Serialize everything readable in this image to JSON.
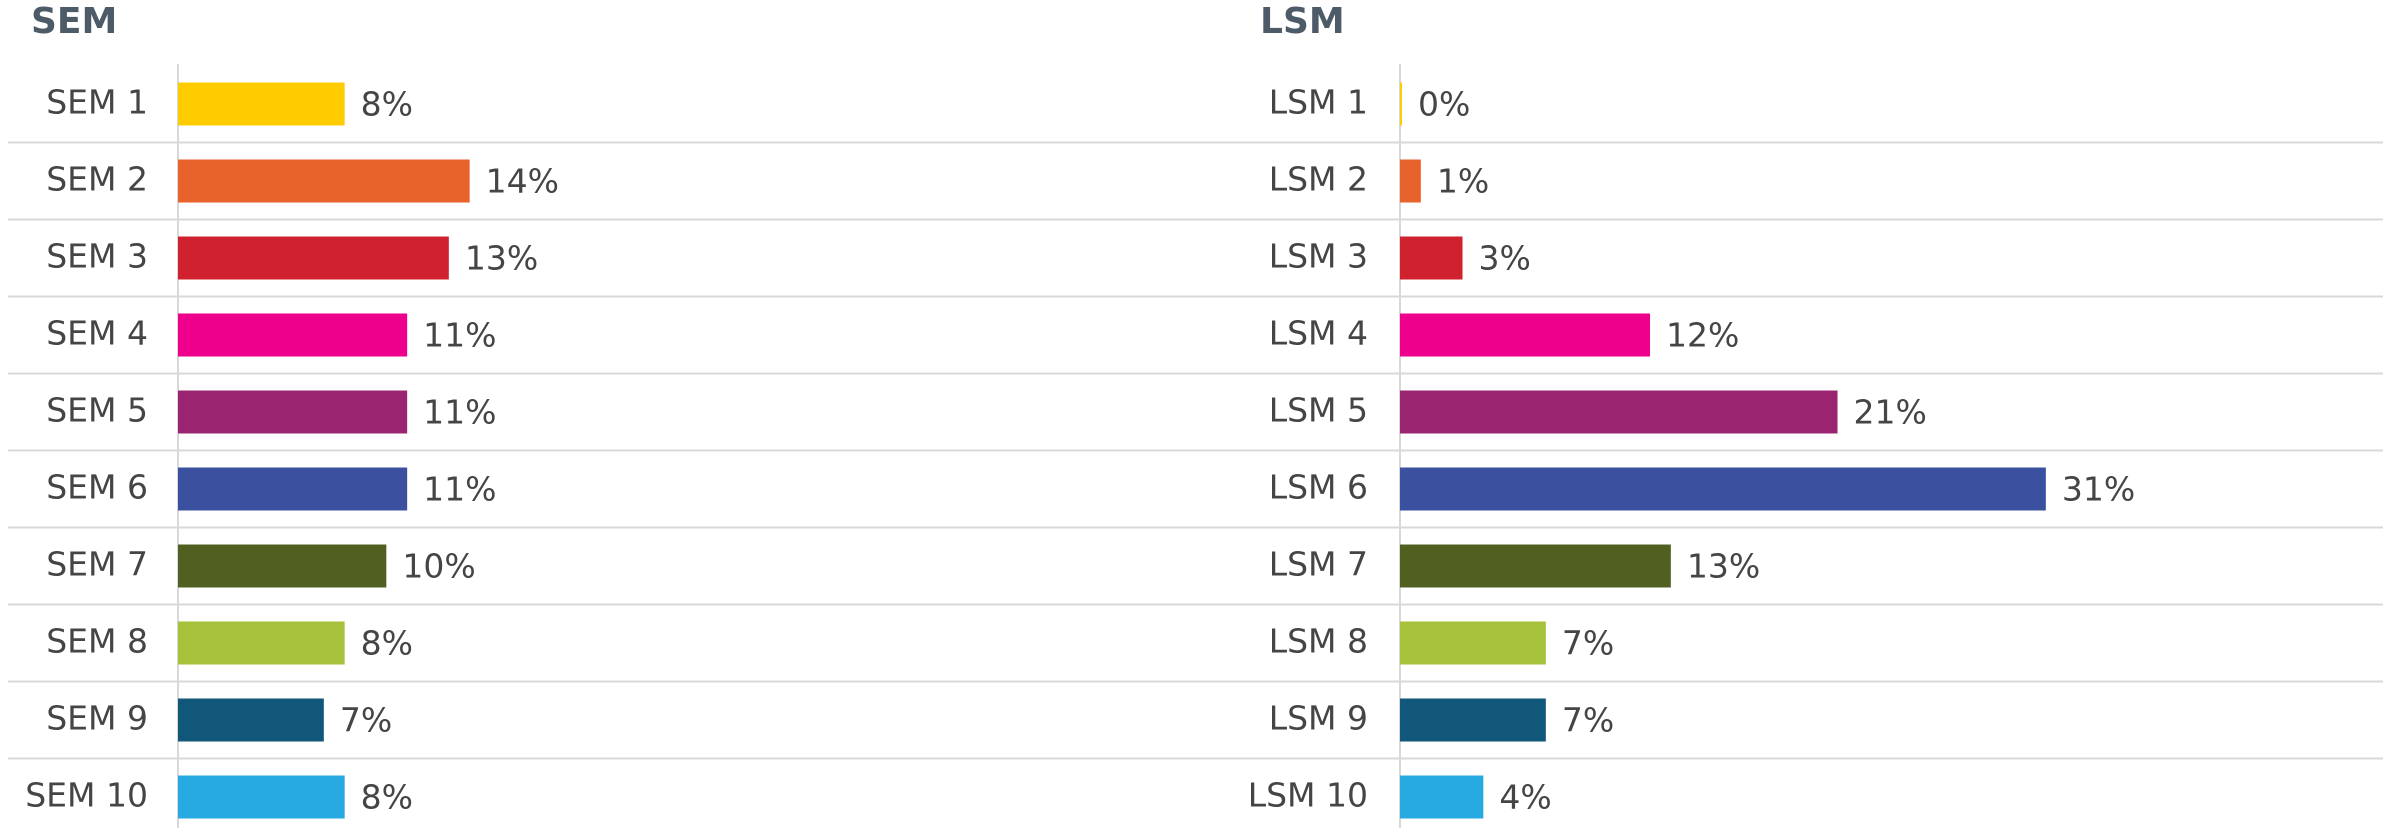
{
  "chart_data": [
    {
      "type": "bar",
      "orientation": "horizontal",
      "title": "SEM",
      "categories": [
        "SEM 1",
        "SEM 2",
        "SEM 3",
        "SEM 4",
        "SEM 5",
        "SEM 6",
        "SEM 7",
        "SEM 8",
        "SEM 9",
        "SEM 10"
      ],
      "values": [
        8,
        14,
        13,
        11,
        11,
        11,
        10,
        8,
        7,
        8
      ],
      "value_labels": [
        "8%",
        "14%",
        "13%",
        "11%",
        "11%",
        "11%",
        "10%",
        "8%",
        "7%",
        "8%"
      ],
      "colors": [
        "#ffcc00",
        "#e8622c",
        "#d0222e",
        "#ee008c",
        "#9a2470",
        "#3c50a0",
        "#4f6020",
        "#a5c23a",
        "#10577a",
        "#27a9e1"
      ],
      "xlim": [
        0,
        48
      ]
    },
    {
      "type": "bar",
      "orientation": "horizontal",
      "title": "LSM",
      "categories": [
        "LSM 1",
        "LSM 2",
        "LSM 3",
        "LSM 4",
        "LSM 5",
        "LSM 6",
        "LSM 7",
        "LSM 8",
        "LSM 9",
        "LSM 10"
      ],
      "values": [
        0,
        1,
        3,
        12,
        21,
        31,
        13,
        7,
        7,
        4
      ],
      "value_labels": [
        "0%",
        "1%",
        "3%",
        "12%",
        "21%",
        "31%",
        "13%",
        "7%",
        "7%",
        "4%"
      ],
      "colors": [
        "#ffcc00",
        "#e8622c",
        "#d0222e",
        "#ee008c",
        "#9a2470",
        "#3c50a0",
        "#4f6020",
        "#a5c23a",
        "#10577a",
        "#27a9e1"
      ],
      "xlim": [
        0,
        48
      ]
    }
  ]
}
